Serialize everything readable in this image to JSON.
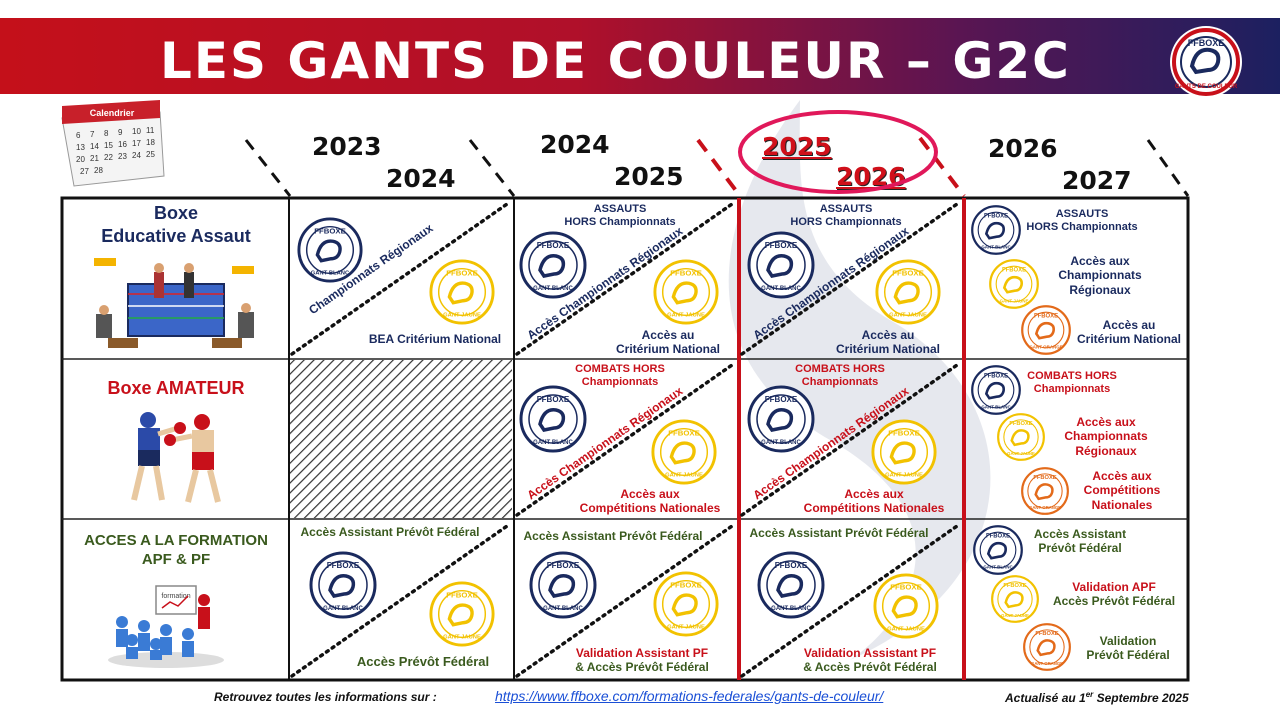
{
  "title": "LES GANTS DE COULEUR – G2C",
  "brand": {
    "name": "FFBOXE",
    "sub": "GANTS DE COULEUR",
    "navy": "#1a2a5e",
    "red": "#c8101a",
    "yellow": "#f2c200",
    "orange": "#e36a1a"
  },
  "calendar_label": "Calendrier",
  "seasons": [
    {
      "start": "2023",
      "end": "2024"
    },
    {
      "start": "2024",
      "end": "2025"
    },
    {
      "start": "2025",
      "end": "2026",
      "highlighted": true
    },
    {
      "start": "2026",
      "end": "2027"
    }
  ],
  "glove_labels": {
    "blanc": "GANT BLANC",
    "jaune": "GANT JAUNE",
    "orange": "GANT ORANGE"
  },
  "rows": {
    "educative": {
      "title_line1": "Boxe",
      "title_line2": "Educative Assaut",
      "c1": {
        "diag": "Championnats Régionaux",
        "bottom": "BEA Critérium National"
      },
      "c2": {
        "top_line1": "ASSAUTS",
        "top_line2": "HORS Championnats",
        "diag": "Accès Championnats Régionaux",
        "bottom_line1": "Accès au",
        "bottom_line2": "Critérium National"
      },
      "c3": {
        "top_line1": "ASSAUTS",
        "top_line2": "HORS Championnats",
        "diag": "Accès Championnats Régionaux",
        "bottom_line1": "Accès au",
        "bottom_line2": "Critérium National"
      },
      "c4": {
        "top_line1": "ASSAUTS",
        "top_line2": "HORS Championnats",
        "mid_line1": "Accès aux",
        "mid_line2": "Championnats",
        "mid_line3": "Régionaux",
        "bottom_line1": "Accès au",
        "bottom_line2": "Critérium National"
      }
    },
    "amateur": {
      "title": "Boxe AMATEUR",
      "c2": {
        "top_line1": "COMBATS HORS",
        "top_line2": "Championnats",
        "diag": "Accès Championnats Régionaux",
        "bottom_line1": "Accès aux",
        "bottom_line2": "Compétitions Nationales"
      },
      "c3": {
        "top_line1": "COMBATS HORS",
        "top_line2": "Championnats",
        "diag": "Accès Championnats Régionaux",
        "bottom_line1": "Accès aux",
        "bottom_line2": "Compétitions Nationales"
      },
      "c4": {
        "top_line1": "COMBATS HORS",
        "top_line2": "Championnats",
        "mid_line1": "Accès aux",
        "mid_line2": "Championnats",
        "mid_line3": "Régionaux",
        "bottom_line1": "Accès aux",
        "bottom_line2": "Compétitions",
        "bottom_line3": "Nationales"
      }
    },
    "formation": {
      "title_line1": "ACCES A LA FORMATION",
      "title_line2": "APF & PF",
      "formation_label": "formation",
      "c1": {
        "top": "Accès Assistant Prévôt Fédéral",
        "bottom": "Accès Prévôt Fédéral"
      },
      "c2": {
        "top": "Accès Assistant Prévôt Fédéral",
        "bottom_line1": "Validation Assistant PF",
        "bottom_line2": "& Accès Prévôt Fédéral"
      },
      "c3": {
        "top": "Accès Assistant Prévôt Fédéral",
        "bottom_line1": "Validation Assistant PF",
        "bottom_line2": "& Accès Prévôt Fédéral"
      },
      "c4": {
        "top_line1": "Accès Assistant",
        "top_line2": "Prévôt Fédéral",
        "mid_line1": "Validation APF",
        "mid_line2": "Accès Prévôt Fédéral",
        "bottom_line1": "Validation",
        "bottom_line2": "Prévôt Fédéral"
      }
    }
  },
  "footer": {
    "info_label": "Retrouvez toutes les informations sur :",
    "link": "https://www.ffboxe.com/formations-federales/gants-de-couleur/",
    "updated_prefix": "Actualisé au 1",
    "updated_sup": "er",
    "updated_suffix": " Septembre 2025"
  }
}
